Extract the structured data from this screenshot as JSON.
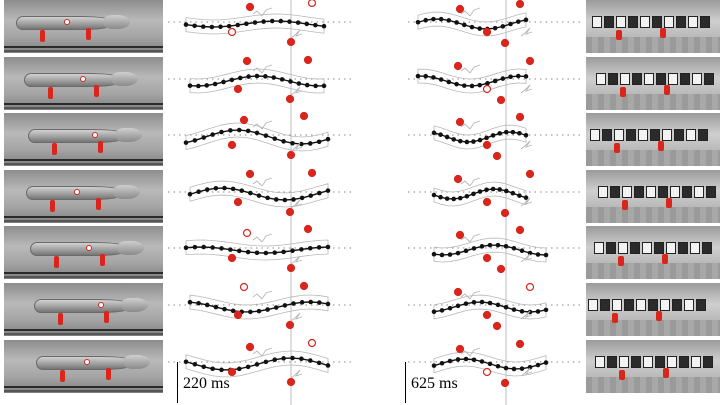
{
  "figure": {
    "description_hidden": false,
    "rows": 7,
    "panels": [
      "animal-video-frames",
      "animal-kinematics",
      "robot-kinematics",
      "robot-video-frames"
    ]
  },
  "scale_bars": [
    {
      "label": "220 ms"
    },
    {
      "label": "625 ms"
    }
  ],
  "colors": {
    "spine": "#111111",
    "foot": "#d9261c",
    "outline": "#b8b8b8",
    "guide": "#8a8a8a",
    "background": "#ffffff"
  }
}
